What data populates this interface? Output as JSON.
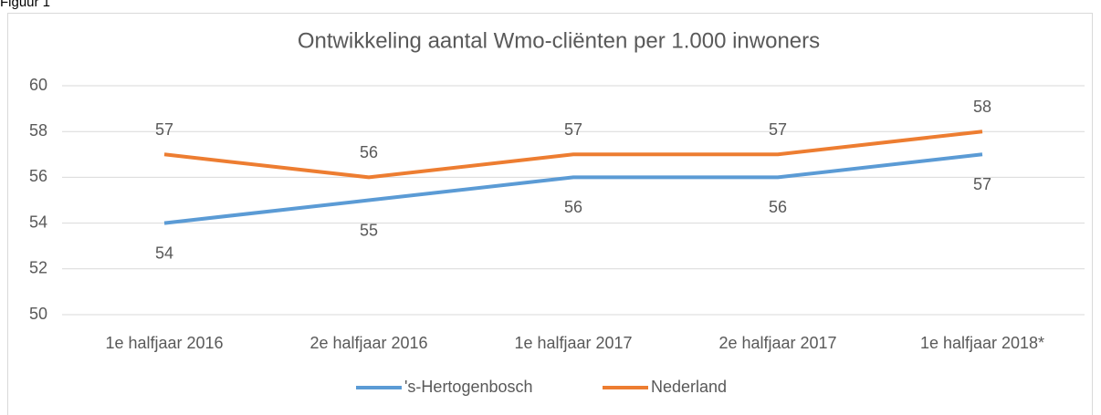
{
  "figure_label": "Figuur 1",
  "chart_data": {
    "type": "line",
    "title": "Ontwikkeling aantal Wmo-cliënten per 1.000 inwoners",
    "categories": [
      "1e halfjaar 2016",
      "2e halfjaar 2016",
      "1e halfjaar 2017",
      "2e halfjaar 2017",
      "1e halfjaar 2018*"
    ],
    "series": [
      {
        "name": "'s-Hertogenbosch",
        "color": "#5b9bd5",
        "values": [
          54,
          55,
          56,
          56,
          57
        ]
      },
      {
        "name": "Nederland",
        "color": "#ed7d31",
        "values": [
          57,
          56,
          57,
          57,
          58
        ]
      }
    ],
    "ylim": [
      50,
      60
    ],
    "yticks": [
      50,
      52,
      54,
      56,
      58,
      60
    ],
    "grid": true,
    "legend": "bottom"
  }
}
